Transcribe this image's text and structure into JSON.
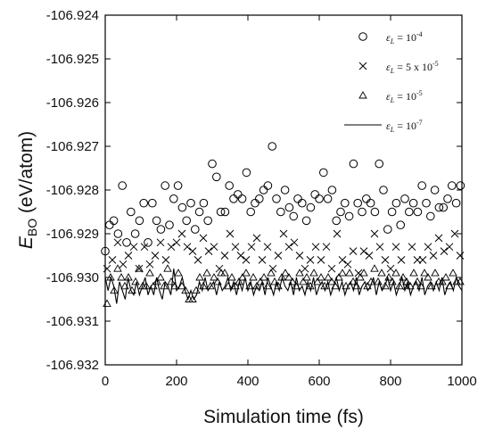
{
  "chart_data": {
    "type": "scatter",
    "title": "",
    "xlabel": "Simulation time (fs)",
    "ylabel_main": "E",
    "ylabel_sub": "BO",
    "ylabel_rest": " (eV/atom)",
    "xlim": [
      0,
      1000
    ],
    "ylim": [
      -106.932,
      -106.924
    ],
    "xticks": [
      0,
      200,
      400,
      600,
      800,
      1000
    ],
    "yticks": [
      -106.932,
      -106.931,
      -106.93,
      -106.929,
      -106.928,
      -106.927,
      -106.926,
      -106.925,
      -106.924
    ],
    "legend_position": "top-right",
    "legend": [
      {
        "marker": "circle",
        "label_pre": "ε",
        "label_sub": "L",
        "label_mid": " = 10",
        "label_sup": "-4"
      },
      {
        "marker": "x",
        "label_pre": "ε",
        "label_sub": "L",
        "label_mid": " = 5 x 10",
        "label_sup": "-5"
      },
      {
        "marker": "triangle",
        "label_pre": "ε",
        "label_sub": "L",
        "label_mid": " = 10",
        "label_sup": "-5"
      },
      {
        "marker": "line",
        "label_pre": "ε",
        "label_sub": "L",
        "label_mid": " = 10",
        "label_sup": "-7"
      }
    ],
    "series": [
      {
        "marker": "circle",
        "x": [
          0,
          12,
          24,
          36,
          48,
          60,
          72,
          84,
          96,
          108,
          120,
          132,
          144,
          156,
          168,
          180,
          192,
          204,
          216,
          228,
          240,
          252,
          264,
          276,
          288,
          300,
          312,
          324,
          336,
          348,
          360,
          372,
          384,
          396,
          408,
          420,
          432,
          444,
          456,
          468,
          480,
          492,
          504,
          516,
          528,
          540,
          552,
          564,
          576,
          588,
          600,
          612,
          624,
          636,
          648,
          660,
          672,
          684,
          696,
          708,
          720,
          732,
          744,
          756,
          768,
          780,
          792,
          804,
          816,
          828,
          840,
          852,
          864,
          876,
          888,
          900,
          912,
          924,
          936,
          948,
          960,
          972,
          984,
          996
        ],
        "y": [
          -106.9294,
          -106.9288,
          -106.9287,
          -106.929,
          -106.9279,
          -106.9292,
          -106.9285,
          -106.929,
          -106.9287,
          -106.9283,
          -106.9292,
          -106.9283,
          -106.9287,
          -106.9289,
          -106.9279,
          -106.9288,
          -106.9282,
          -106.9279,
          -106.9284,
          -106.9287,
          -106.9283,
          -106.9289,
          -106.9285,
          -106.9283,
          -106.9287,
          -106.9274,
          -106.9277,
          -106.9285,
          -106.9285,
          -106.9279,
          -106.9282,
          -106.9281,
          -106.9282,
          -106.9276,
          -106.9285,
          -106.9283,
          -106.9282,
          -106.928,
          -106.9279,
          -106.927,
          -106.9282,
          -106.9285,
          -106.928,
          -106.9284,
          -106.9286,
          -106.9282,
          -106.9283,
          -106.9287,
          -106.9284,
          -106.9281,
          -106.9282,
          -106.9276,
          -106.9282,
          -106.928,
          -106.9287,
          -106.9285,
          -106.9283,
          -106.9286,
          -106.9274,
          -106.9283,
          -106.9285,
          -106.9282,
          -106.9283,
          -106.9285,
          -106.9274,
          -106.928,
          -106.9289,
          -106.9285,
          -106.9283,
          -106.9288,
          -106.9282,
          -106.9285,
          -106.9283,
          -106.9285,
          -106.9279,
          -106.9283,
          -106.9286,
          -106.928,
          -106.9284,
          -106.9284,
          -106.9282,
          -106.9279,
          -106.9283,
          -106.9279
        ]
      },
      {
        "marker": "x",
        "x": [
          5,
          20,
          35,
          50,
          65,
          80,
          95,
          110,
          125,
          140,
          155,
          170,
          185,
          200,
          215,
          230,
          245,
          260,
          275,
          290,
          305,
          320,
          335,
          350,
          365,
          380,
          395,
          410,
          425,
          440,
          455,
          470,
          485,
          500,
          515,
          530,
          545,
          560,
          575,
          590,
          605,
          620,
          635,
          650,
          665,
          680,
          695,
          710,
          725,
          740,
          755,
          770,
          785,
          800,
          815,
          830,
          845,
          860,
          875,
          890,
          905,
          920,
          935,
          950,
          965,
          980,
          995
        ],
        "y": [
          -106.9298,
          -106.9296,
          -106.9292,
          -106.9297,
          -106.9295,
          -106.9293,
          -106.9298,
          -106.9293,
          -106.9297,
          -106.9295,
          -106.9292,
          -106.9296,
          -106.9293,
          -106.9292,
          -106.929,
          -106.9293,
          -106.9294,
          -106.9296,
          -106.9291,
          -106.9294,
          -106.9293,
          -106.9298,
          -106.9295,
          -106.929,
          -106.9293,
          -106.9295,
          -106.9296,
          -106.9293,
          -106.9291,
          -106.9296,
          -106.9293,
          -106.9298,
          -106.9295,
          -106.929,
          -106.9293,
          -106.9292,
          -106.9295,
          -106.9298,
          -106.9296,
          -106.9293,
          -106.9296,
          -106.9293,
          -106.9298,
          -106.929,
          -106.9296,
          -106.9297,
          -106.9294,
          -106.9299,
          -106.9294,
          -106.9295,
          -106.929,
          -106.9293,
          -106.9296,
          -106.9298,
          -106.9293,
          -106.9296,
          -106.9302,
          -106.9293,
          -106.9296,
          -106.9296,
          -106.9293,
          -106.9295,
          -106.9291,
          -106.9294,
          -106.9293,
          -106.929,
          -106.9295
        ]
      },
      {
        "marker": "triangle",
        "x": [
          5,
          15,
          25,
          35,
          45,
          55,
          65,
          75,
          85,
          95,
          105,
          115,
          125,
          135,
          145,
          155,
          165,
          175,
          185,
          195,
          205,
          215,
          225,
          235,
          245,
          255,
          265,
          275,
          285,
          295,
          305,
          315,
          325,
          335,
          345,
          355,
          365,
          375,
          385,
          395,
          405,
          415,
          425,
          435,
          445,
          455,
          465,
          475,
          485,
          495,
          505,
          515,
          525,
          535,
          545,
          555,
          565,
          575,
          585,
          595,
          605,
          615,
          625,
          635,
          645,
          655,
          665,
          675,
          685,
          695,
          705,
          715,
          725,
          735,
          745,
          755,
          765,
          775,
          785,
          795,
          805,
          815,
          825,
          835,
          845,
          855,
          865,
          875,
          885,
          895,
          905,
          915,
          925,
          935,
          945,
          955,
          965,
          975,
          985,
          995
        ],
        "y": [
          -106.9306,
          -106.93,
          -106.9303,
          -106.9298,
          -106.93,
          -106.9302,
          -106.93,
          -106.9303,
          -106.9301,
          -106.9298,
          -106.9302,
          -106.9302,
          -106.9299,
          -106.9302,
          -106.9301,
          -106.93,
          -106.9302,
          -106.9298,
          -106.9301,
          -106.9302,
          -106.9299,
          -106.9302,
          -106.9303,
          -106.9305,
          -106.9305,
          -106.9303,
          -106.93,
          -106.9302,
          -106.9299,
          -106.9302,
          -106.93,
          -106.9301,
          -106.9299,
          -106.9299,
          -106.9302,
          -106.93,
          -106.9302,
          -106.9301,
          -106.93,
          -106.9299,
          -106.9302,
          -106.93,
          -106.9302,
          -106.9301,
          -106.93,
          -106.9302,
          -106.9299,
          -106.9301,
          -106.9302,
          -106.93,
          -106.9299,
          -106.93,
          -106.9301,
          -106.9302,
          -106.9299,
          -106.9301,
          -106.93,
          -106.9302,
          -106.9299,
          -106.9301,
          -106.93,
          -106.9302,
          -106.93,
          -106.9301,
          -106.9302,
          -106.93,
          -106.9299,
          -106.9302,
          -106.9299,
          -106.9301,
          -106.9302,
          -106.93,
          -106.9299,
          -106.9302,
          -106.9301,
          -106.9298,
          -106.9301,
          -106.9299,
          -106.9302,
          -106.93,
          -106.9301,
          -106.9299,
          -106.9302,
          -106.93,
          -106.9301,
          -106.9302,
          -106.9299,
          -106.9301,
          -106.9302,
          -106.9299,
          -106.93,
          -106.9302,
          -106.9299,
          -106.9301,
          -106.9301,
          -106.93,
          -106.9302,
          -106.9299,
          -106.9301,
          -106.9301
        ]
      },
      {
        "marker": "line",
        "x": [
          0,
          8,
          16,
          24,
          32,
          40,
          48,
          56,
          64,
          72,
          80,
          88,
          96,
          104,
          112,
          120,
          128,
          136,
          144,
          152,
          160,
          168,
          176,
          184,
          192,
          200,
          208,
          216,
          224,
          232,
          240,
          248,
          256,
          264,
          272,
          280,
          288,
          296,
          304,
          312,
          320,
          328,
          336,
          344,
          352,
          360,
          368,
          376,
          384,
          392,
          400,
          408,
          416,
          424,
          432,
          440,
          448,
          456,
          464,
          472,
          480,
          488,
          496,
          504,
          512,
          520,
          528,
          536,
          544,
          552,
          560,
          568,
          576,
          584,
          592,
          600,
          608,
          616,
          624,
          632,
          640,
          648,
          656,
          664,
          672,
          680,
          688,
          696,
          704,
          712,
          720,
          728,
          736,
          744,
          752,
          760,
          768,
          776,
          784,
          792,
          800,
          808,
          816,
          824,
          832,
          840,
          848,
          856,
          864,
          872,
          880,
          888,
          896,
          904,
          912,
          920,
          928,
          936,
          944,
          952,
          960,
          968,
          976,
          984,
          992,
          1000
        ],
        "y": [
          -106.93,
          -106.9303,
          -106.93,
          -106.9302,
          -106.9306,
          -106.9301,
          -106.9303,
          -106.9305,
          -106.93,
          -106.9303,
          -106.9304,
          -106.9301,
          -106.9304,
          -106.9302,
          -106.93,
          -106.9304,
          -106.9302,
          -106.9304,
          -106.93,
          -106.9303,
          -106.9305,
          -106.9301,
          -106.9302,
          -106.9304,
          -106.9298,
          -106.9303,
          -106.9302,
          -106.93,
          -106.9303,
          -106.9305,
          -106.9303,
          -106.9305,
          -106.9304,
          -106.9301,
          -106.9303,
          -106.93,
          -106.9303,
          -106.9302,
          -106.9301,
          -106.9304,
          -106.9301,
          -106.9303,
          -106.9302,
          -106.93,
          -106.9303,
          -106.9301,
          -106.9304,
          -106.9301,
          -106.9303,
          -106.93,
          -106.9303,
          -106.9301,
          -106.9304,
          -106.9302,
          -106.9303,
          -106.9301,
          -106.9304,
          -106.93,
          -106.9302,
          -106.9304,
          -106.9301,
          -106.9303,
          -106.93,
          -106.9302,
          -106.9303,
          -106.9301,
          -106.9304,
          -106.93,
          -106.9303,
          -106.9302,
          -106.9304,
          -106.9301,
          -106.9303,
          -106.93,
          -106.9304,
          -106.9302,
          -106.9301,
          -106.9303,
          -106.9301,
          -106.9304,
          -106.9302,
          -106.93,
          -106.9303,
          -106.9301,
          -106.9304,
          -106.9302,
          -106.9301,
          -106.9303,
          -106.93,
          -106.9304,
          -106.9302,
          -106.9301,
          -106.9303,
          -106.9302,
          -106.93,
          -106.9304,
          -106.9301,
          -106.9303,
          -106.9302,
          -106.93,
          -106.9303,
          -106.9301,
          -106.9304,
          -106.9302,
          -106.93,
          -106.9303,
          -106.9301,
          -106.9304,
          -106.9302,
          -106.9301,
          -106.9303,
          -106.93,
          -106.9304,
          -106.9302,
          -106.9301,
          -106.9303,
          -106.9301,
          -106.9303,
          -106.93,
          -106.9304,
          -106.9302,
          -106.9301,
          -106.9303,
          -106.93,
          -106.9302,
          -106.9303
        ]
      }
    ]
  }
}
